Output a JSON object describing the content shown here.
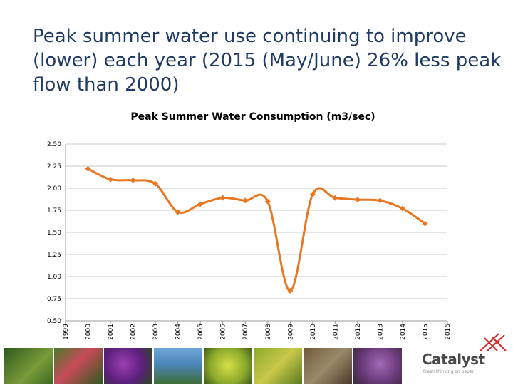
{
  "slide": {
    "title": "Peak summer water use continuing to improve (lower) each year (2015 (May/June) 26% less peak flow than 2000)"
  },
  "logo": {
    "name": "Catalyst",
    "tagline": "Fresh thinking on paper"
  },
  "photos": [
    "flower-photo",
    "flower-photo",
    "flower-photo",
    "landscape-photo",
    "plant-photo",
    "plant-photo",
    "plant-photo",
    "flower-photo"
  ],
  "colors": {
    "title": "#1f3b63",
    "series": "#e87722",
    "grid": "#c8c8c8"
  },
  "chart_data": {
    "type": "line",
    "title": "Peak Summer Water Consumption (m3/sec)",
    "xlabel": "",
    "ylabel": "",
    "ylim": [
      0.5,
      2.5
    ],
    "yticks": [
      "0.50",
      "0.75",
      "1.00",
      "1.25",
      "1.50",
      "1.75",
      "2.00",
      "2.25",
      "2.50"
    ],
    "categories": [
      "1999",
      "2000",
      "2001",
      "2002",
      "2003",
      "2004",
      "2005",
      "2006",
      "2007",
      "2008",
      "2009",
      "2010",
      "2011",
      "2012",
      "2013",
      "2014",
      "2015",
      "2016"
    ],
    "grid": true,
    "legend": "none",
    "smoothed": true,
    "series": [
      {
        "x": [
          "2000",
          "2001",
          "2002",
          "2003",
          "2004",
          "2005",
          "2006",
          "2007",
          "2008",
          "2009",
          "2010",
          "2011",
          "2012",
          "2013",
          "2014",
          "2015"
        ],
        "values": [
          2.22,
          2.1,
          2.09,
          2.05,
          1.73,
          1.82,
          1.89,
          1.86,
          1.85,
          0.84,
          1.93,
          1.89,
          1.87,
          1.86,
          1.77,
          1.6
        ]
      }
    ]
  }
}
